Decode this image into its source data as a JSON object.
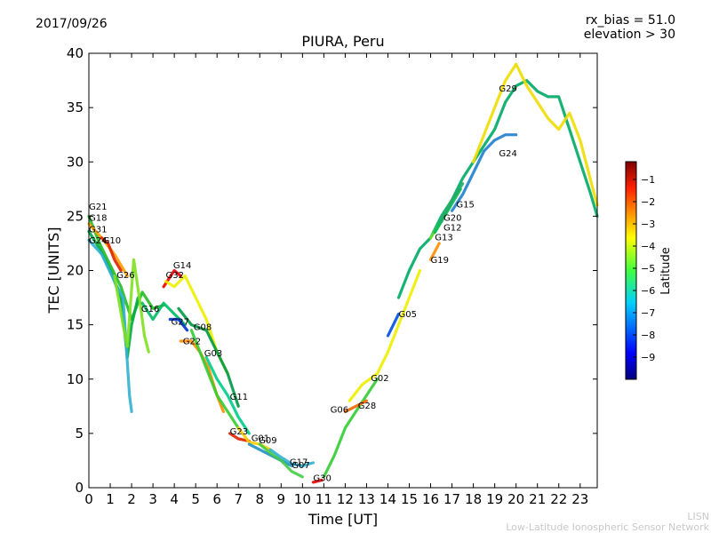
{
  "header": {
    "date": "2017/09/26",
    "rx_bias": "rx_bias = 51.0",
    "elevation": "elevation > 30"
  },
  "footer": {
    "line1": "LISN",
    "line2": "Low-Latitude Ionospheric Sensor Network"
  },
  "chart_data": {
    "type": "scatter",
    "title": "PIURA, Peru",
    "xlabel": "Time [UT]",
    "ylabel": "TEC [UNITS]",
    "xlim": [
      0,
      23.8
    ],
    "ylim": [
      0,
      40
    ],
    "xticks": [
      0,
      1,
      2,
      3,
      4,
      5,
      6,
      7,
      8,
      9,
      10,
      11,
      12,
      13,
      14,
      15,
      16,
      17,
      18,
      19,
      20,
      21,
      22,
      23
    ],
    "yticks": [
      0,
      5,
      10,
      15,
      20,
      25,
      30,
      35,
      40
    ],
    "colorbar": {
      "label": "Latitude",
      "range": [
        -10,
        -0.2
      ],
      "ticks": [
        -1,
        -2,
        -3,
        -4,
        -5,
        -6,
        -7,
        -8,
        -9
      ]
    },
    "series": [
      {
        "name": "G21",
        "color": "#22bb22",
        "points": [
          [
            0,
            25.0
          ],
          [
            0.5,
            22.5
          ],
          [
            1.0,
            20.5
          ],
          [
            1.5,
            18.5
          ],
          [
            2.0,
            15.5
          ],
          [
            2.5,
            18.0
          ],
          [
            3.0,
            16.5
          ],
          [
            3.5,
            16.8
          ]
        ]
      },
      {
        "name": "G18",
        "color": "#ffa000",
        "points": [
          [
            0,
            24.3
          ],
          [
            0.6,
            23.0
          ],
          [
            1.2,
            21.5
          ],
          [
            1.8,
            19.5
          ]
        ]
      },
      {
        "name": "G31",
        "color": "#00aa44",
        "points": [
          [
            0,
            23.6
          ],
          [
            0.5,
            22.0
          ],
          [
            1.0,
            20.0
          ],
          [
            1.5,
            17.5
          ],
          [
            1.8,
            12.0
          ],
          [
            2.0,
            15.0
          ],
          [
            2.3,
            17.5
          ]
        ]
      },
      {
        "name": "G24",
        "color": "#30b0d0",
        "points": [
          [
            0,
            22.8
          ],
          [
            0.6,
            21.5
          ],
          [
            1.2,
            19.0
          ],
          [
            1.6,
            17.5
          ],
          [
            1.9,
            8.5
          ],
          [
            2.0,
            7.0
          ]
        ]
      },
      {
        "name": "G10",
        "color": "#dd2200",
        "points": [
          [
            0.6,
            23.0
          ],
          [
            0.9,
            22.5
          ],
          [
            1.2,
            21.0
          ],
          [
            1.5,
            20.0
          ]
        ]
      },
      {
        "name": "G26",
        "color": "#80e020",
        "points": [
          [
            1.2,
            19.5
          ],
          [
            1.6,
            15.0
          ],
          [
            1.8,
            13.0
          ],
          [
            2.1,
            21.0
          ],
          [
            2.4,
            17.0
          ],
          [
            2.6,
            14.0
          ],
          [
            2.8,
            12.5
          ]
        ]
      },
      {
        "name": "G16",
        "color": "#00bb66",
        "points": [
          [
            2.5,
            17.0
          ],
          [
            3.0,
            15.5
          ],
          [
            3.5,
            17.0
          ],
          [
            4.0,
            16.0
          ],
          [
            4.5,
            15.0
          ]
        ]
      },
      {
        "name": "G14",
        "color": "#ee0000",
        "points": [
          [
            3.5,
            18.5
          ],
          [
            4.0,
            20.0
          ],
          [
            4.3,
            19.5
          ]
        ]
      },
      {
        "name": "G32",
        "color": "#eeee00",
        "points": [
          [
            3.6,
            19.0
          ],
          [
            4.0,
            18.5
          ],
          [
            4.5,
            19.5
          ],
          [
            5.0,
            17.5
          ],
          [
            5.5,
            15.5
          ],
          [
            6.0,
            12.5
          ],
          [
            6.5,
            10.5
          ]
        ]
      },
      {
        "name": "G27",
        "color": "#0030d0",
        "points": [
          [
            3.8,
            15.5
          ],
          [
            4.2,
            15.5
          ],
          [
            4.6,
            14.5
          ]
        ]
      },
      {
        "name": "G08",
        "color": "#009944",
        "points": [
          [
            4.2,
            16.5
          ],
          [
            4.8,
            15.0
          ],
          [
            5.5,
            14.5
          ],
          [
            6.0,
            12.5
          ],
          [
            6.5,
            10.5
          ],
          [
            7.0,
            7.5
          ]
        ]
      },
      {
        "name": "G22",
        "color": "#ff8c00",
        "points": [
          [
            4.3,
            13.5
          ],
          [
            4.8,
            13.5
          ],
          [
            5.2,
            12.5
          ],
          [
            5.6,
            11.0
          ],
          [
            6.0,
            8.5
          ],
          [
            6.3,
            7.0
          ]
        ]
      },
      {
        "name": "G03",
        "color": "#33cc33",
        "points": [
          [
            4.8,
            14.5
          ],
          [
            5.5,
            11.0
          ],
          [
            6.0,
            8.5
          ],
          [
            6.5,
            7.0
          ],
          [
            7.0,
            5.5
          ]
        ]
      },
      {
        "name": "G11",
        "color": "#00cc88",
        "points": [
          [
            5.5,
            12.0
          ],
          [
            6.0,
            10.0
          ],
          [
            6.5,
            8.5
          ],
          [
            7.0,
            6.5
          ],
          [
            7.5,
            5.0
          ]
        ]
      },
      {
        "name": "G23",
        "color": "#dd2200",
        "points": [
          [
            6.6,
            5.0
          ],
          [
            7.0,
            4.5
          ],
          [
            7.5,
            4.3
          ]
        ]
      },
      {
        "name": "G01",
        "color": "#ffcc00",
        "points": [
          [
            7.0,
            5.5
          ],
          [
            7.5,
            4.2
          ],
          [
            8.0,
            4.0
          ],
          [
            8.5,
            3.5
          ]
        ]
      },
      {
        "name": "G09",
        "color": "#2090c0",
        "points": [
          [
            7.5,
            4.0
          ],
          [
            8.0,
            3.5
          ],
          [
            8.5,
            3.0
          ],
          [
            9.0,
            2.5
          ],
          [
            9.5,
            2.0
          ]
        ]
      },
      {
        "name": "G17",
        "color": "#44cc44",
        "points": [
          [
            8.0,
            4.0
          ],
          [
            8.5,
            3.2
          ],
          [
            9.0,
            2.5
          ],
          [
            9.5,
            1.5
          ],
          [
            10.0,
            1.0
          ]
        ]
      },
      {
        "name": "G07",
        "color": "#30b0d0",
        "points": [
          [
            8.5,
            3.5
          ],
          [
            9.0,
            2.8
          ],
          [
            9.5,
            2.2
          ],
          [
            10.0,
            2.0
          ],
          [
            10.5,
            2.3
          ]
        ]
      },
      {
        "name": "G30",
        "color": "#ee0000",
        "points": [
          [
            10.5,
            0.5
          ],
          [
            10.9,
            0.7
          ]
        ]
      },
      {
        "name": "G06",
        "color": "#33cc33",
        "points": [
          [
            11.0,
            1.0
          ],
          [
            11.5,
            3.0
          ],
          [
            12.0,
            5.5
          ],
          [
            12.5,
            7.0
          ],
          [
            13.0,
            8.5
          ],
          [
            13.5,
            10.0
          ]
        ]
      },
      {
        "name": "G28",
        "color": "#ee6600",
        "points": [
          [
            12.0,
            7.0
          ],
          [
            12.5,
            7.5
          ],
          [
            13.0,
            8.0
          ]
        ]
      },
      {
        "name": "G02",
        "color": "#eeee00",
        "points": [
          [
            12.2,
            8.0
          ],
          [
            12.8,
            9.5
          ],
          [
            13.5,
            10.5
          ],
          [
            14.0,
            12.5
          ],
          [
            14.5,
            15.0
          ],
          [
            15.0,
            17.5
          ],
          [
            15.5,
            20.0
          ]
        ]
      },
      {
        "name": "G05",
        "color": "#0050e0",
        "points": [
          [
            14.0,
            14.0
          ],
          [
            14.5,
            16.0
          ]
        ]
      },
      {
        "name": "G19",
        "color": "#ff8c00",
        "points": [
          [
            16.0,
            21.0
          ],
          [
            16.4,
            22.5
          ]
        ]
      },
      {
        "name": "G13",
        "color": "#00aa66",
        "points": [
          [
            14.5,
            17.5
          ],
          [
            15.0,
            20.0
          ],
          [
            15.5,
            22.0
          ],
          [
            16.0,
            23.0
          ],
          [
            16.5,
            25.0
          ],
          [
            17.0,
            26.5
          ],
          [
            17.5,
            28.5
          ],
          [
            18.0,
            30.0
          ],
          [
            18.5,
            31.5
          ],
          [
            19.0,
            33.0
          ],
          [
            19.5,
            35.5
          ],
          [
            20.0,
            37.0
          ],
          [
            20.5,
            37.5
          ],
          [
            21.0,
            36.5
          ],
          [
            21.5,
            36.0
          ],
          [
            22.0,
            36.0
          ],
          [
            22.5,
            33.0
          ],
          [
            23.0,
            30.0
          ],
          [
            23.5,
            27.0
          ],
          [
            23.8,
            25.0
          ]
        ]
      },
      {
        "name": "G12",
        "color": "#70dd30",
        "points": [
          [
            16.0,
            23.0
          ],
          [
            16.5,
            24.5
          ],
          [
            17.0,
            26.5
          ]
        ]
      },
      {
        "name": "G20",
        "color": "#00bb55",
        "points": [
          [
            16.2,
            23.5
          ],
          [
            16.8,
            25.5
          ],
          [
            17.4,
            27.5
          ]
        ]
      },
      {
        "name": "G15",
        "color": "#22aa66",
        "points": [
          [
            16.5,
            24.5
          ],
          [
            17.0,
            26.5
          ],
          [
            17.5,
            28.0
          ]
        ]
      },
      {
        "name": "G24",
        "color": "#2080cc",
        "points": [
          [
            17.0,
            25.5
          ],
          [
            17.5,
            27.0
          ],
          [
            18.0,
            29.0
          ],
          [
            18.5,
            31.0
          ],
          [
            19.0,
            32.0
          ],
          [
            19.5,
            32.5
          ],
          [
            20.0,
            32.5
          ]
        ]
      },
      {
        "name": "G29",
        "color": "#eedd00",
        "points": [
          [
            18.0,
            30.0
          ],
          [
            18.5,
            32.5
          ],
          [
            19.0,
            35.0
          ],
          [
            19.5,
            37.5
          ],
          [
            20.0,
            39.0
          ],
          [
            20.5,
            37.0
          ],
          [
            21.0,
            35.5
          ],
          [
            21.5,
            34.0
          ],
          [
            22.0,
            33.0
          ],
          [
            22.5,
            34.5
          ],
          [
            23.0,
            32.0
          ],
          [
            23.8,
            26.0
          ]
        ]
      }
    ],
    "labels": [
      {
        "text": "G21",
        "x": 0.0,
        "y": 25.6
      },
      {
        "text": "G18",
        "x": 0.0,
        "y": 24.6
      },
      {
        "text": "G31",
        "x": 0.0,
        "y": 23.5
      },
      {
        "text": "G24",
        "x": 0.0,
        "y": 22.5
      },
      {
        "text": "G10",
        "x": 0.65,
        "y": 22.5
      },
      {
        "text": "G26",
        "x": 1.3,
        "y": 19.3
      },
      {
        "text": "G14",
        "x": 3.95,
        "y": 20.2
      },
      {
        "text": "G32",
        "x": 3.6,
        "y": 19.3
      },
      {
        "text": "G16",
        "x": 2.45,
        "y": 16.2
      },
      {
        "text": "G27",
        "x": 3.85,
        "y": 15.0
      },
      {
        "text": "G08",
        "x": 4.9,
        "y": 14.5
      },
      {
        "text": "G22",
        "x": 4.4,
        "y": 13.2
      },
      {
        "text": "G03",
        "x": 5.4,
        "y": 12.1
      },
      {
        "text": "G11",
        "x": 6.6,
        "y": 8.1
      },
      {
        "text": "G23",
        "x": 6.6,
        "y": 4.9
      },
      {
        "text": "G01",
        "x": 7.6,
        "y": 4.3
      },
      {
        "text": "G09",
        "x": 7.95,
        "y": 4.1
      },
      {
        "text": "G17",
        "x": 9.4,
        "y": 2.1
      },
      {
        "text": "G07",
        "x": 9.5,
        "y": 1.8
      },
      {
        "text": "G30",
        "x": 10.5,
        "y": 0.6
      },
      {
        "text": "G06",
        "x": 11.3,
        "y": 6.9
      },
      {
        "text": "G28",
        "x": 12.6,
        "y": 7.3
      },
      {
        "text": "G02",
        "x": 13.2,
        "y": 9.8
      },
      {
        "text": "G05",
        "x": 14.5,
        "y": 15.7
      },
      {
        "text": "G19",
        "x": 16.0,
        "y": 20.7
      },
      {
        "text": "G13",
        "x": 16.2,
        "y": 22.8
      },
      {
        "text": "G12",
        "x": 16.6,
        "y": 23.7
      },
      {
        "text": "G20",
        "x": 16.6,
        "y": 24.6
      },
      {
        "text": "G15",
        "x": 17.2,
        "y": 25.8
      },
      {
        "text": "G24",
        "x": 19.2,
        "y": 30.5
      },
      {
        "text": "G29",
        "x": 19.2,
        "y": 36.5
      }
    ]
  }
}
